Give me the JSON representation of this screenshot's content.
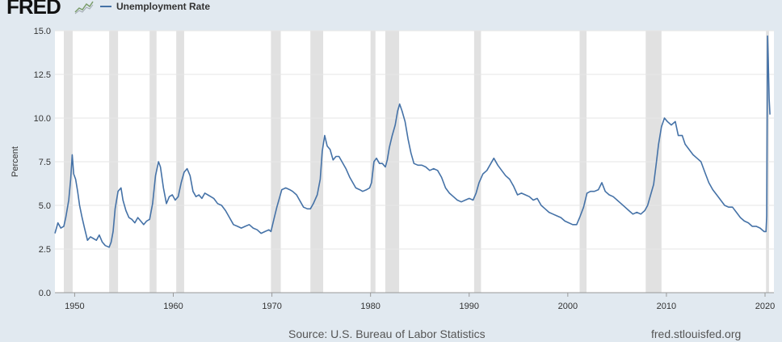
{
  "header": {
    "logo_text": "FRED",
    "legend_label": "Unemployment Rate"
  },
  "footer": {
    "source": "Source: U.S. Bureau of Labor Statistics",
    "url": "fred.stlouisfed.org"
  },
  "colors": {
    "line": "#4572a7",
    "recession": "#e1e1e1",
    "background": "#e1e9f0",
    "plot": "#ffffff"
  },
  "chart_data": {
    "type": "line",
    "xlabel": "",
    "ylabel": "Percent",
    "xlim": [
      1948.0,
      2020.9
    ],
    "ylim": [
      0,
      15
    ],
    "y_ticks": [
      "0.0",
      "2.5",
      "5.0",
      "7.5",
      "10.0",
      "12.5",
      "15.0"
    ],
    "x_ticks": [
      "1950",
      "1960",
      "1970",
      "1980",
      "1990",
      "2000",
      "2010",
      "2020"
    ],
    "grid": "horizontal",
    "legend": "top-left",
    "recessions": [
      [
        1948.9,
        1949.8
      ],
      [
        1953.5,
        1954.4
      ],
      [
        1957.6,
        1958.3
      ],
      [
        1960.3,
        1961.1
      ],
      [
        1969.9,
        1970.9
      ],
      [
        1973.9,
        1975.2
      ],
      [
        1980.0,
        1980.5
      ],
      [
        1981.5,
        1982.9
      ],
      [
        1990.5,
        1991.2
      ],
      [
        2001.2,
        2001.9
      ],
      [
        2007.9,
        2009.5
      ],
      [
        2020.1,
        2020.4
      ]
    ],
    "series": [
      {
        "values": [
          [
            1948.0,
            3.4
          ],
          [
            1948.3,
            4.0
          ],
          [
            1948.6,
            3.7
          ],
          [
            1948.9,
            3.8
          ],
          [
            1949.1,
            4.3
          ],
          [
            1949.4,
            5.3
          ],
          [
            1949.6,
            6.5
          ],
          [
            1949.75,
            7.9
          ],
          [
            1949.9,
            6.8
          ],
          [
            1950.1,
            6.5
          ],
          [
            1950.3,
            5.8
          ],
          [
            1950.5,
            5.0
          ],
          [
            1950.75,
            4.3
          ],
          [
            1951.0,
            3.7
          ],
          [
            1951.3,
            3.0
          ],
          [
            1951.6,
            3.2
          ],
          [
            1951.9,
            3.1
          ],
          [
            1952.2,
            3.0
          ],
          [
            1952.5,
            3.3
          ],
          [
            1952.8,
            2.9
          ],
          [
            1953.1,
            2.7
          ],
          [
            1953.5,
            2.6
          ],
          [
            1953.7,
            2.9
          ],
          [
            1953.9,
            3.5
          ],
          [
            1954.1,
            4.8
          ],
          [
            1954.4,
            5.8
          ],
          [
            1954.7,
            6.0
          ],
          [
            1954.9,
            5.3
          ],
          [
            1955.2,
            4.7
          ],
          [
            1955.5,
            4.3
          ],
          [
            1955.8,
            4.2
          ],
          [
            1956.1,
            4.0
          ],
          [
            1956.4,
            4.3
          ],
          [
            1956.7,
            4.1
          ],
          [
            1957.0,
            3.9
          ],
          [
            1957.3,
            4.1
          ],
          [
            1957.6,
            4.2
          ],
          [
            1957.9,
            5.1
          ],
          [
            1958.2,
            6.7
          ],
          [
            1958.5,
            7.5
          ],
          [
            1958.7,
            7.2
          ],
          [
            1959.0,
            6.0
          ],
          [
            1959.3,
            5.1
          ],
          [
            1959.6,
            5.5
          ],
          [
            1959.9,
            5.6
          ],
          [
            1960.2,
            5.3
          ],
          [
            1960.5,
            5.5
          ],
          [
            1960.8,
            6.3
          ],
          [
            1961.1,
            6.9
          ],
          [
            1961.4,
            7.1
          ],
          [
            1961.7,
            6.7
          ],
          [
            1962.0,
            5.8
          ],
          [
            1962.3,
            5.5
          ],
          [
            1962.6,
            5.6
          ],
          [
            1962.9,
            5.4
          ],
          [
            1963.2,
            5.7
          ],
          [
            1963.5,
            5.6
          ],
          [
            1963.8,
            5.5
          ],
          [
            1964.1,
            5.4
          ],
          [
            1964.5,
            5.1
          ],
          [
            1964.9,
            5.0
          ],
          [
            1965.3,
            4.7
          ],
          [
            1965.7,
            4.3
          ],
          [
            1966.1,
            3.9
          ],
          [
            1966.5,
            3.8
          ],
          [
            1966.9,
            3.7
          ],
          [
            1967.3,
            3.8
          ],
          [
            1967.7,
            3.9
          ],
          [
            1968.1,
            3.7
          ],
          [
            1968.5,
            3.6
          ],
          [
            1968.9,
            3.4
          ],
          [
            1969.3,
            3.5
          ],
          [
            1969.7,
            3.6
          ],
          [
            1969.9,
            3.5
          ],
          [
            1970.2,
            4.2
          ],
          [
            1970.5,
            4.9
          ],
          [
            1970.8,
            5.5
          ],
          [
            1971.0,
            5.9
          ],
          [
            1971.4,
            6.0
          ],
          [
            1971.8,
            5.9
          ],
          [
            1972.1,
            5.8
          ],
          [
            1972.5,
            5.6
          ],
          [
            1972.9,
            5.2
          ],
          [
            1973.2,
            4.9
          ],
          [
            1973.6,
            4.8
          ],
          [
            1973.9,
            4.8
          ],
          [
            1974.2,
            5.1
          ],
          [
            1974.6,
            5.6
          ],
          [
            1974.9,
            6.5
          ],
          [
            1975.1,
            8.1
          ],
          [
            1975.35,
            9.0
          ],
          [
            1975.6,
            8.4
          ],
          [
            1975.9,
            8.2
          ],
          [
            1976.2,
            7.6
          ],
          [
            1976.5,
            7.8
          ],
          [
            1976.8,
            7.8
          ],
          [
            1977.1,
            7.5
          ],
          [
            1977.5,
            7.1
          ],
          [
            1977.9,
            6.6
          ],
          [
            1978.2,
            6.3
          ],
          [
            1978.5,
            6.0
          ],
          [
            1978.9,
            5.9
          ],
          [
            1979.2,
            5.8
          ],
          [
            1979.6,
            5.9
          ],
          [
            1979.9,
            6.0
          ],
          [
            1980.1,
            6.3
          ],
          [
            1980.35,
            7.5
          ],
          [
            1980.6,
            7.7
          ],
          [
            1980.9,
            7.4
          ],
          [
            1981.2,
            7.4
          ],
          [
            1981.5,
            7.2
          ],
          [
            1981.7,
            7.6
          ],
          [
            1981.9,
            8.3
          ],
          [
            1982.2,
            9.0
          ],
          [
            1982.5,
            9.6
          ],
          [
            1982.75,
            10.4
          ],
          [
            1982.95,
            10.8
          ],
          [
            1983.2,
            10.4
          ],
          [
            1983.5,
            9.8
          ],
          [
            1983.8,
            8.8
          ],
          [
            1984.1,
            8.0
          ],
          [
            1984.4,
            7.4
          ],
          [
            1984.8,
            7.3
          ],
          [
            1985.2,
            7.3
          ],
          [
            1985.6,
            7.2
          ],
          [
            1986.0,
            7.0
          ],
          [
            1986.4,
            7.1
          ],
          [
            1986.8,
            7.0
          ],
          [
            1987.2,
            6.6
          ],
          [
            1987.6,
            6.0
          ],
          [
            1988.0,
            5.7
          ],
          [
            1988.4,
            5.5
          ],
          [
            1988.8,
            5.3
          ],
          [
            1989.2,
            5.2
          ],
          [
            1989.6,
            5.3
          ],
          [
            1990.0,
            5.4
          ],
          [
            1990.4,
            5.3
          ],
          [
            1990.7,
            5.7
          ],
          [
            1991.0,
            6.3
          ],
          [
            1991.4,
            6.8
          ],
          [
            1991.8,
            7.0
          ],
          [
            1992.2,
            7.4
          ],
          [
            1992.5,
            7.7
          ],
          [
            1992.9,
            7.3
          ],
          [
            1993.3,
            7.0
          ],
          [
            1993.7,
            6.7
          ],
          [
            1994.1,
            6.5
          ],
          [
            1994.5,
            6.1
          ],
          [
            1994.9,
            5.6
          ],
          [
            1995.3,
            5.7
          ],
          [
            1995.7,
            5.6
          ],
          [
            1996.1,
            5.5
          ],
          [
            1996.5,
            5.3
          ],
          [
            1996.9,
            5.4
          ],
          [
            1997.3,
            5.0
          ],
          [
            1997.7,
            4.8
          ],
          [
            1998.1,
            4.6
          ],
          [
            1998.5,
            4.5
          ],
          [
            1998.9,
            4.4
          ],
          [
            1999.3,
            4.3
          ],
          [
            1999.7,
            4.1
          ],
          [
            2000.1,
            4.0
          ],
          [
            2000.5,
            3.9
          ],
          [
            2000.9,
            3.9
          ],
          [
            2001.2,
            4.3
          ],
          [
            2001.6,
            4.9
          ],
          [
            2001.95,
            5.7
          ],
          [
            2002.3,
            5.8
          ],
          [
            2002.7,
            5.8
          ],
          [
            2003.1,
            5.9
          ],
          [
            2003.45,
            6.3
          ],
          [
            2003.8,
            5.8
          ],
          [
            2004.2,
            5.6
          ],
          [
            2004.6,
            5.5
          ],
          [
            2005.0,
            5.3
          ],
          [
            2005.4,
            5.1
          ],
          [
            2005.8,
            4.9
          ],
          [
            2006.2,
            4.7
          ],
          [
            2006.6,
            4.5
          ],
          [
            2007.0,
            4.6
          ],
          [
            2007.4,
            4.5
          ],
          [
            2007.8,
            4.7
          ],
          [
            2008.1,
            5.0
          ],
          [
            2008.4,
            5.6
          ],
          [
            2008.7,
            6.2
          ],
          [
            2008.95,
            7.3
          ],
          [
            2009.2,
            8.5
          ],
          [
            2009.5,
            9.5
          ],
          [
            2009.8,
            10.0
          ],
          [
            2010.1,
            9.8
          ],
          [
            2010.5,
            9.6
          ],
          [
            2010.9,
            9.8
          ],
          [
            2011.2,
            9.0
          ],
          [
            2011.6,
            9.0
          ],
          [
            2011.9,
            8.5
          ],
          [
            2012.3,
            8.2
          ],
          [
            2012.7,
            7.9
          ],
          [
            2013.1,
            7.7
          ],
          [
            2013.5,
            7.5
          ],
          [
            2013.9,
            6.9
          ],
          [
            2014.3,
            6.3
          ],
          [
            2014.7,
            5.9
          ],
          [
            2015.1,
            5.6
          ],
          [
            2015.5,
            5.3
          ],
          [
            2015.9,
            5.0
          ],
          [
            2016.3,
            4.9
          ],
          [
            2016.7,
            4.9
          ],
          [
            2017.1,
            4.6
          ],
          [
            2017.5,
            4.3
          ],
          [
            2017.9,
            4.1
          ],
          [
            2018.3,
            4.0
          ],
          [
            2018.7,
            3.8
          ],
          [
            2019.1,
            3.8
          ],
          [
            2019.5,
            3.7
          ],
          [
            2019.9,
            3.5
          ],
          [
            2020.1,
            3.5
          ],
          [
            2020.17,
            4.4
          ],
          [
            2020.25,
            14.7
          ],
          [
            2020.33,
            13.3
          ],
          [
            2020.42,
            11.1
          ],
          [
            2020.5,
            10.2
          ]
        ]
      }
    ]
  }
}
